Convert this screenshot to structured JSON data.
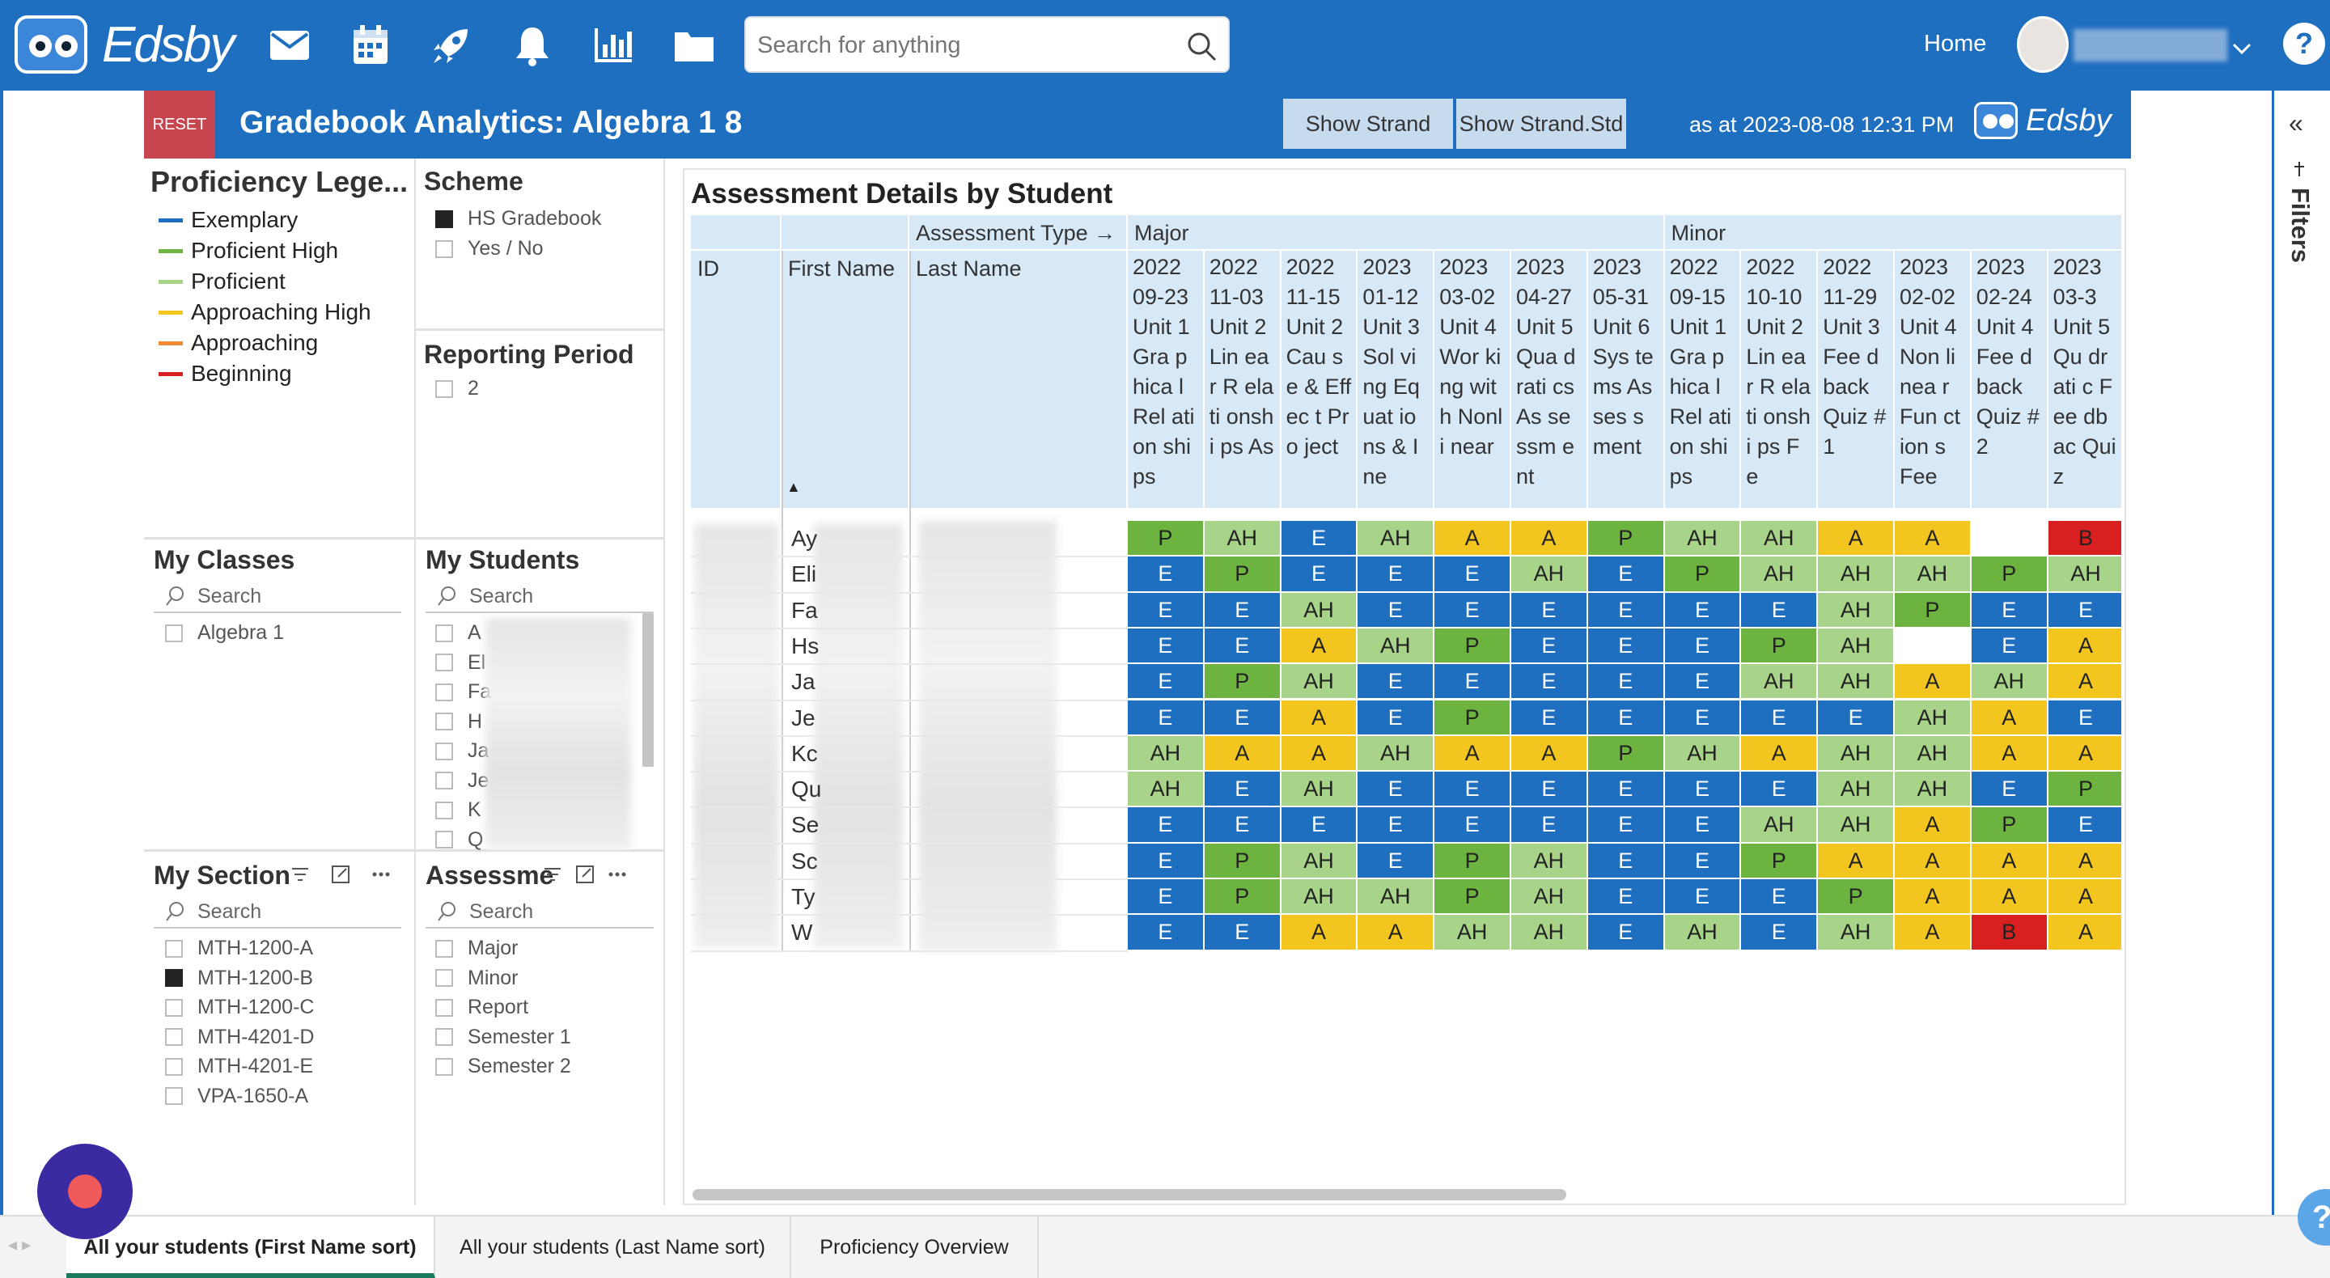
{
  "app": {
    "logo_text": "Edsby",
    "search_placeholder": "Search for anything",
    "home_label": "Home",
    "help": "?"
  },
  "header": {
    "reset": "RESET",
    "title": "Gradebook Analytics: Algebra 1 8",
    "show_strand": "Show Strand",
    "show_strand_std": "Show Strand.Std",
    "as_at": "as at 2023-08-08 12:31 PM",
    "logo_text": "Edsby"
  },
  "right_panel": {
    "collapse": "«",
    "filters": "Filters"
  },
  "legend": {
    "title": "Proficiency Lege...",
    "items": [
      {
        "label": "Exemplary",
        "color": "#1f6fc0"
      },
      {
        "label": "Proficient High",
        "color": "#6cb33f"
      },
      {
        "label": "Proficient",
        "color": "#a8d48a"
      },
      {
        "label": "Approaching High",
        "color": "#f2c61f"
      },
      {
        "label": "Approaching",
        "color": "#f08a34"
      },
      {
        "label": "Beginning",
        "color": "#d82020"
      }
    ]
  },
  "scheme": {
    "title": "Scheme",
    "options": [
      {
        "label": "HS Gradebook",
        "checked": true
      },
      {
        "label": "Yes / No",
        "checked": false
      }
    ]
  },
  "reporting_period": {
    "title": "Reporting Period",
    "options": [
      {
        "label": "2",
        "checked": false
      }
    ]
  },
  "my_classes": {
    "title": "My Classes",
    "search": "Search",
    "options": [
      {
        "label": "Algebra 1",
        "checked": false
      }
    ]
  },
  "my_students": {
    "title": "My Students",
    "search": "Search",
    "options": [
      "A",
      "El",
      "Fa",
      "H",
      "Ja",
      "Je",
      "K",
      "Q"
    ]
  },
  "my_section": {
    "title": "My Section",
    "search": "Search",
    "options": [
      {
        "label": "MTH-1200-A",
        "checked": false
      },
      {
        "label": "MTH-1200-B",
        "checked": true
      },
      {
        "label": "MTH-1200-C",
        "checked": false
      },
      {
        "label": "MTH-4201-D",
        "checked": false
      },
      {
        "label": "MTH-4201-E",
        "checked": false
      },
      {
        "label": "VPA-1650-A",
        "checked": false
      }
    ]
  },
  "assessment": {
    "title": "Assessme",
    "search": "Search",
    "options": [
      "Major",
      "Minor",
      "Report",
      "Semester 1",
      "Semester 2"
    ]
  },
  "table": {
    "title": "Assessment Details by Student",
    "assessment_type_label": "Assessment Type →",
    "group_major": "Major",
    "group_minor": "Minor",
    "col_id": "ID",
    "col_first": "First Name",
    "col_last": "Last Name",
    "sort_indicator": "▲",
    "columns": [
      "2022 09-23 Unit 1 Gra phica l Rel ation ships",
      "2022 11-03 Unit 2 Lin ear R elati onshi ps As",
      "2022 11-15 Unit 2 Cau se & Effec t Pro ject",
      "2023 01-12 Unit 3 Sol ving Equat ions & Ine",
      "2023 03-02 Unit 4 Wor king with Nonli near",
      "2023 04-27 Unit 5 Qua drati cs As sessm ent",
      "2023 05-31 Unit 6 Sys tems Asses sment",
      "2022 09-15 Unit 1 Gra phica l Rel ation ships",
      "2022 10-10 Unit 2 Lin ear R elati onshi ps Fe",
      "2022 11-29 Unit 3 Fee dback Quiz #1",
      "2023 02-02 Unit 4 Non linea r Fun ction s Fee",
      "2023 02-24 Unit 4 Fee dback Quiz #2",
      "2023 03-3 Unit 5 Qu drati c Fee dbac Quiz"
    ],
    "rows": [
      {
        "first": "Ay",
        "grades": [
          "P",
          "AH",
          "E",
          "AH",
          "A",
          "A",
          "P",
          "AH",
          "AH",
          "A",
          "A",
          "",
          "B"
        ]
      },
      {
        "first": "Eli",
        "grades": [
          "E",
          "P",
          "E",
          "E",
          "E",
          "AH",
          "E",
          "P",
          "AH",
          "AH",
          "AH",
          "P",
          "AH"
        ]
      },
      {
        "first": "Fa",
        "grades": [
          "E",
          "E",
          "AH",
          "E",
          "E",
          "E",
          "E",
          "E",
          "E",
          "AH",
          "P",
          "E",
          "E"
        ]
      },
      {
        "first": "Hs",
        "grades": [
          "E",
          "E",
          "A",
          "AH",
          "P",
          "E",
          "E",
          "E",
          "P",
          "AH",
          "",
          "E",
          "A"
        ]
      },
      {
        "first": "Ja",
        "grades": [
          "E",
          "P",
          "AH",
          "E",
          "E",
          "E",
          "E",
          "E",
          "AH",
          "AH",
          "A",
          "AH",
          "A"
        ]
      },
      {
        "first": "Je",
        "grades": [
          "E",
          "E",
          "A",
          "E",
          "P",
          "E",
          "E",
          "E",
          "E",
          "E",
          "AH",
          "A",
          "E"
        ]
      },
      {
        "first": "Kc",
        "grades": [
          "AH",
          "A",
          "A",
          "AH",
          "A",
          "A",
          "P",
          "AH",
          "A",
          "AH",
          "AH",
          "A",
          "A"
        ]
      },
      {
        "first": "Qu",
        "grades": [
          "AH",
          "E",
          "AH",
          "E",
          "E",
          "E",
          "E",
          "E",
          "E",
          "AH",
          "AH",
          "E",
          "P"
        ]
      },
      {
        "first": "Se",
        "grades": [
          "E",
          "E",
          "E",
          "E",
          "E",
          "E",
          "E",
          "E",
          "AH",
          "AH",
          "A",
          "P",
          "E"
        ]
      },
      {
        "first": "Sc",
        "grades": [
          "E",
          "P",
          "AH",
          "E",
          "P",
          "AH",
          "E",
          "E",
          "P",
          "A",
          "A",
          "A",
          "A"
        ]
      },
      {
        "first": "Ty",
        "grades": [
          "E",
          "P",
          "AH",
          "AH",
          "P",
          "AH",
          "E",
          "E",
          "E",
          "P",
          "A",
          "A",
          "A"
        ]
      },
      {
        "first": "W",
        "grades": [
          "E",
          "E",
          "A",
          "A",
          "AH",
          "AH",
          "E",
          "AH",
          "E",
          "AH",
          "A",
          "B",
          "A"
        ]
      }
    ]
  },
  "tabs": [
    {
      "label": "All your students (First Name sort)",
      "active": true
    },
    {
      "label": "All your students (Last Name sort)",
      "active": false
    },
    {
      "label": "Proficiency Overview",
      "active": false
    }
  ]
}
